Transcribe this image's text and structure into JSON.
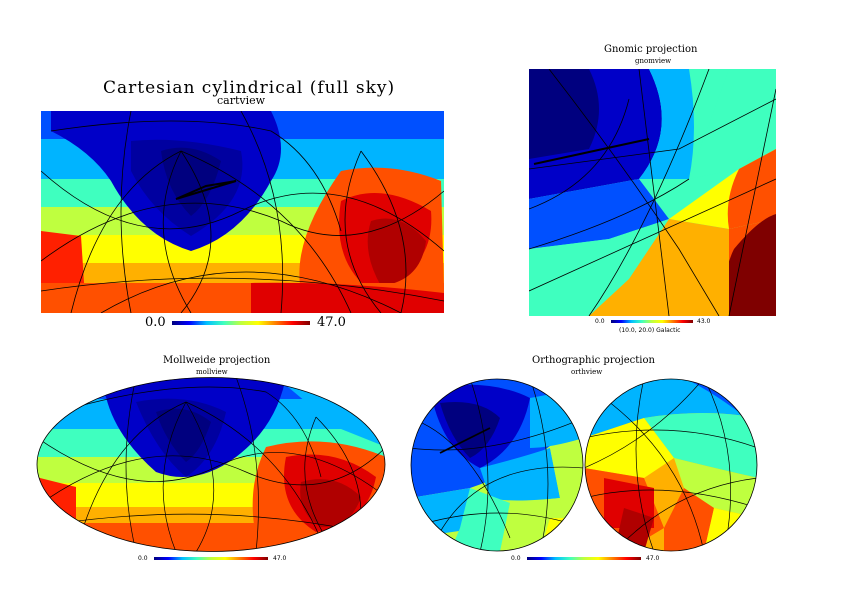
{
  "colors": {
    "jet": [
      "#00007f",
      "#0000c8",
      "#0050ff",
      "#00b4ff",
      "#3fffbf",
      "#bfff3f",
      "#ffff00",
      "#ffb000",
      "#ff5000",
      "#e00000",
      "#7f0000"
    ]
  },
  "cartview": {
    "title": "Cartesian cylindrical (full sky)",
    "subtitle": "cartview",
    "min_label": "0.0",
    "max_label": "47.0"
  },
  "gnomview": {
    "title": "Gnomic projection",
    "subtitle": "gnomview",
    "min_label": "0.0",
    "max_label": "43.0",
    "note": "(10.0, 20.0) Galactic"
  },
  "mollview": {
    "title": "Mollweide projection",
    "subtitle": "mollview",
    "min_label": "0.0",
    "max_label": "47.0"
  },
  "orthview": {
    "title": "Orthographic projection",
    "subtitle": "orthview",
    "min_label": "0.0",
    "max_label": "47.0"
  }
}
